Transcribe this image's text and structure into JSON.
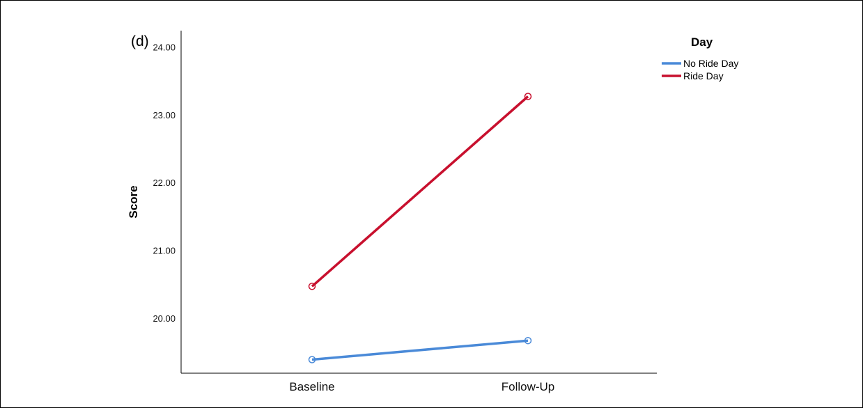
{
  "chart_data": {
    "type": "line",
    "panel_label": "(d)",
    "title": "",
    "xlabel": "",
    "ylabel": "Score",
    "categories": [
      "Baseline",
      "Follow-Up"
    ],
    "ylim": [
      19.2,
      24.25
    ],
    "yticks": [
      "20.00",
      "21.00",
      "22.00",
      "23.00",
      "24.00"
    ],
    "yticks_values": [
      20,
      21,
      22,
      23,
      24
    ],
    "grid": false,
    "markers": "open-circle",
    "legend": {
      "title": "Day",
      "placement": "right"
    },
    "series": [
      {
        "name": "No Ride Day",
        "color": "#4a8ad8",
        "values": [
          19.4,
          19.68
        ]
      },
      {
        "name": "Ride Day",
        "color": "#c8102e",
        "values": [
          20.48,
          23.28
        ]
      }
    ]
  }
}
